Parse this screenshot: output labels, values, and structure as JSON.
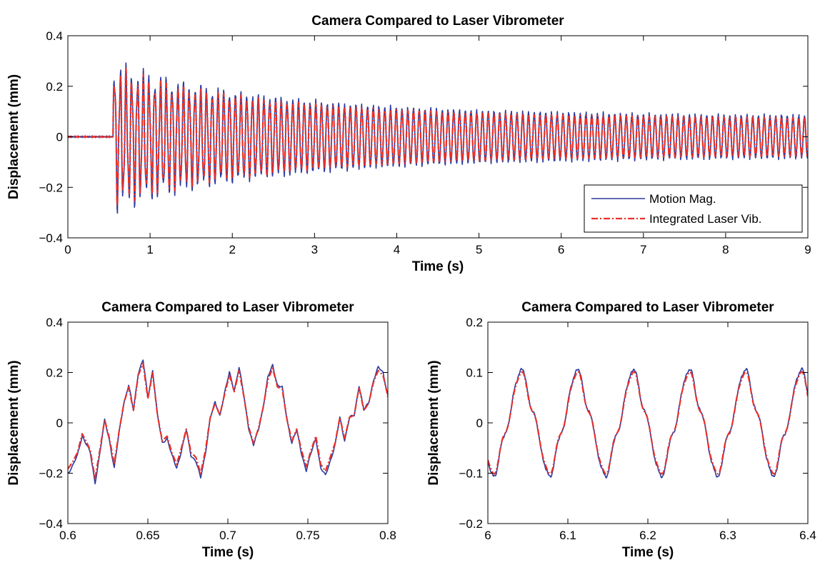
{
  "chart_data": [
    {
      "type": "line",
      "title": "Camera Compared to Laser Vibrometer",
      "xlabel": "Time (s)",
      "ylabel": "Displacement (mm)",
      "xlim": [
        0,
        9
      ],
      "ylim": [
        -0.4,
        0.4
      ],
      "xticks": [
        "0",
        "1",
        "2",
        "3",
        "4",
        "5",
        "6",
        "7",
        "8",
        "9"
      ],
      "yticks": [
        "−0.4",
        "−0.2",
        "0",
        "0.2",
        "0.4"
      ],
      "grid": false,
      "legend_position": "bottom-right",
      "series": [
        {
          "name": "Motion Mag.",
          "color": "#2b3a9e",
          "style": "solid"
        },
        {
          "name": "Integrated Laser Vib.",
          "color": "#e8302a",
          "style": "dash-dot"
        }
      ],
      "signal": {
        "onset_time": 0.55,
        "initial_amplitude": 0.24,
        "final_amplitude": 0.075,
        "frequency_hz": 14.3
      }
    },
    {
      "type": "line",
      "title": "Camera Compared to Laser Vibrometer",
      "xlabel": "Time (s)",
      "ylabel": "Displacement (mm)",
      "xlim": [
        0.6,
        0.8
      ],
      "ylim": [
        -0.4,
        0.4
      ],
      "xticks": [
        "0.6",
        "0.65",
        "0.7",
        "0.75",
        "0.8"
      ],
      "yticks": [
        "−0.4",
        "−0.2",
        "0",
        "0.2",
        "0.4"
      ],
      "grid": false,
      "series": [
        {
          "name": "Motion Mag.",
          "color": "#2b3a9e",
          "style": "solid"
        },
        {
          "name": "Integrated Laser Vib.",
          "color": "#e8302a",
          "style": "dash-dot"
        }
      ],
      "points": {
        "x": [
          0.6,
          0.603,
          0.606,
          0.609,
          0.612,
          0.614,
          0.617,
          0.62,
          0.623,
          0.626,
          0.629,
          0.632,
          0.635,
          0.638,
          0.641,
          0.644,
          0.647,
          0.65,
          0.653,
          0.656,
          0.659,
          0.662,
          0.665,
          0.668,
          0.671,
          0.674,
          0.677,
          0.68,
          0.683,
          0.686,
          0.689,
          0.692,
          0.695,
          0.698,
          0.701,
          0.704,
          0.707,
          0.71,
          0.713,
          0.716,
          0.719,
          0.722,
          0.725,
          0.728,
          0.731,
          0.734,
          0.737,
          0.74,
          0.743,
          0.746,
          0.749,
          0.752,
          0.755,
          0.758,
          0.761,
          0.764,
          0.767,
          0.77,
          0.773,
          0.776,
          0.779,
          0.782,
          0.785,
          0.788,
          0.791,
          0.794,
          0.797,
          0.8
        ],
        "y": [
          -0.2,
          -0.17,
          -0.13,
          -0.05,
          -0.09,
          -0.12,
          -0.24,
          -0.12,
          0.01,
          -0.07,
          -0.18,
          -0.04,
          0.08,
          0.15,
          0.05,
          0.2,
          0.25,
          0.1,
          0.21,
          0.03,
          -0.08,
          -0.06,
          -0.13,
          -0.18,
          -0.11,
          -0.03,
          -0.13,
          -0.15,
          -0.22,
          -0.12,
          0.02,
          0.08,
          0.03,
          0.12,
          0.2,
          0.13,
          0.22,
          0.11,
          -0.02,
          -0.09,
          -0.03,
          0.06,
          0.18,
          0.23,
          0.15,
          0.14,
          0.01,
          -0.08,
          -0.03,
          -0.12,
          -0.19,
          -0.12,
          -0.06,
          -0.18,
          -0.21,
          -0.15,
          -0.09,
          0.02,
          -0.07,
          0.02,
          0.03,
          0.15,
          0.05,
          0.08,
          0.17,
          0.22,
          0.2,
          0.11
        ]
      }
    },
    {
      "type": "line",
      "title": "Camera Compared to Laser Vibrometer",
      "xlabel": "Time (s)",
      "ylabel": "Displacement (mm)",
      "xlim": [
        6,
        6.4
      ],
      "ylim": [
        -0.2,
        0.2
      ],
      "xticks": [
        "6",
        "6.1",
        "6.2",
        "6.3",
        "6.4"
      ],
      "yticks": [
        "−0.2",
        "−0.1",
        "0",
        "0.1",
        "0.2"
      ],
      "grid": false,
      "series": [
        {
          "name": "Motion Mag.",
          "color": "#2b3a9e",
          "style": "solid"
        },
        {
          "name": "Integrated Laser Vib.",
          "color": "#e8302a",
          "style": "dash-dot"
        }
      ],
      "signal": {
        "frequency_hz": 14.3,
        "amplitude": 0.095,
        "first_peak_time": 6.042
      }
    }
  ]
}
